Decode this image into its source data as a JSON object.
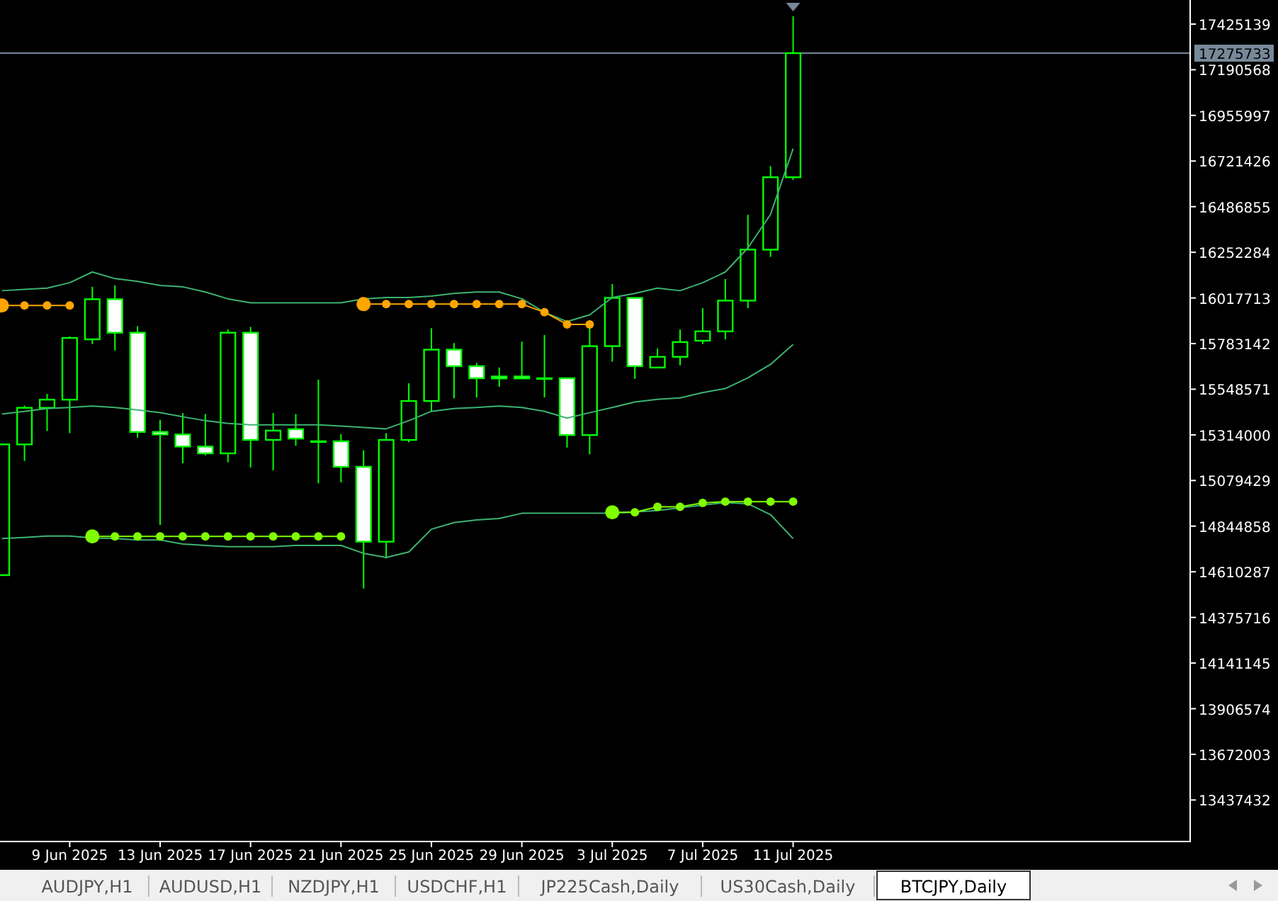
{
  "chart_data": {
    "type": "candlestick",
    "title": "BTCJPY,Daily",
    "annotations": [
      "AUDJPY,H1",
      "AUDUSD,H1",
      "NZDJPY,H1",
      "USDCHF,H1",
      "JP225Cash,Daily",
      "US30Cash,Daily"
    ],
    "color": "#00ff00",
    "x": [
      "2025-06-06",
      "2025-06-07",
      "2025-06-08",
      "2025-06-09",
      "2025-06-10",
      "2025-06-11",
      "2025-06-12",
      "2025-06-13",
      "2025-06-14",
      "2025-06-15",
      "2025-06-16",
      "2025-06-17",
      "2025-06-18",
      "2025-06-19",
      "2025-06-20",
      "2025-06-21",
      "2025-06-22",
      "2025-06-23",
      "2025-06-24",
      "2025-06-25",
      "2025-06-26",
      "2025-06-27",
      "2025-06-28",
      "2025-06-29",
      "2025-06-30",
      "2025-07-01",
      "2025-07-02",
      "2025-07-03",
      "2025-07-04",
      "2025-07-05",
      "2025-07-06",
      "2025-07-07",
      "2025-07-08",
      "2025-07-09",
      "2025-07-10",
      "2025-07-11"
    ],
    "ohlc": [
      [
        14593000,
        15265000,
        14593000,
        15265000
      ],
      [
        15265000,
        15464000,
        15180000,
        15453000
      ],
      [
        15453000,
        15524000,
        15334000,
        15495000
      ],
      [
        15495000,
        15820000,
        15323000,
        15812000
      ],
      [
        15805000,
        16075000,
        15781000,
        16011000
      ],
      [
        16011000,
        16082000,
        15747000,
        15839000
      ],
      [
        15839000,
        15873000,
        15299000,
        15329000
      ],
      [
        15329000,
        15391000,
        14851000,
        15316000
      ],
      [
        15316000,
        15426000,
        15168000,
        15254000
      ],
      [
        15254000,
        15421000,
        15208000,
        15219000
      ],
      [
        15219000,
        15855000,
        15173000,
        15839000
      ],
      [
        15839000,
        15869000,
        15146000,
        15288000
      ],
      [
        15288000,
        15426000,
        15132000,
        15336000
      ],
      [
        15343000,
        15421000,
        15258000,
        15295000
      ],
      [
        15281000,
        15598000,
        15065000,
        15281000
      ],
      [
        15281000,
        15318000,
        15070000,
        15150000
      ],
      [
        15150000,
        15235000,
        14524000,
        14765000
      ],
      [
        14765000,
        15323000,
        14679000,
        15288000
      ],
      [
        15288000,
        15579000,
        15276000,
        15488000
      ],
      [
        15488000,
        15862000,
        15437000,
        15752000
      ],
      [
        15752000,
        15786000,
        15502000,
        15667000
      ],
      [
        15667000,
        15683000,
        15506000,
        15605000
      ],
      [
        15614000,
        15660000,
        15561000,
        15604000
      ],
      [
        15614000,
        15793000,
        15604000,
        15604000
      ],
      [
        15605000,
        15827000,
        15506000,
        15605000
      ],
      [
        15605000,
        15605000,
        15249000,
        15313000
      ],
      [
        15313000,
        15862000,
        15214000,
        15770000
      ],
      [
        15770000,
        16089000,
        15690000,
        16018000
      ],
      [
        16018000,
        16018000,
        15602000,
        15667000
      ],
      [
        15660000,
        15758000,
        15660000,
        15715000
      ],
      [
        15715000,
        15855000,
        15671000,
        15791000
      ],
      [
        15798000,
        15965000,
        15781000,
        15846000
      ],
      [
        15846000,
        16115000,
        15805000,
        16004000
      ],
      [
        16004000,
        16445000,
        15965000,
        16266000
      ],
      [
        16266000,
        16695000,
        16229000,
        16638000
      ],
      [
        16638000,
        17466000,
        16624000,
        17275733
      ]
    ],
    "series": [
      {
        "type": "line",
        "color": "#3cb371",
        "marker": "none",
        "values": [
          16055000,
          16062000,
          16068000,
          16096000,
          16151000,
          16117000,
          16103000,
          16082000,
          16075000,
          16048000,
          16013000,
          15993000,
          15993000,
          15993000,
          15993000,
          15993000,
          16013000,
          16020000,
          16020000,
          16027000,
          16041000,
          16048000,
          16048000,
          16013000,
          15944000,
          15896000,
          15931000,
          16020000,
          16041000,
          16068000,
          16055000,
          16096000,
          16151000,
          16275000,
          16447000,
          16785000
        ]
      },
      {
        "type": "line",
        "color": "#3cb371",
        "marker": "none",
        "values": [
          15421000,
          15435000,
          15449000,
          15455000,
          15462000,
          15455000,
          15442000,
          15428000,
          15407000,
          15387000,
          15373000,
          15366000,
          15366000,
          15366000,
          15366000,
          15359000,
          15352000,
          15345000,
          15387000,
          15435000,
          15449000,
          15455000,
          15462000,
          15455000,
          15435000,
          15400000,
          15428000,
          15455000,
          15483000,
          15497000,
          15504000,
          15531000,
          15552000,
          15607000,
          15676000,
          15779000
        ]
      },
      {
        "type": "line",
        "color": "#3cb371",
        "marker": "none",
        "values": [
          14781000,
          14787000,
          14794000,
          14794000,
          14784000,
          14781000,
          14774000,
          14774000,
          14753000,
          14746000,
          14739000,
          14739000,
          14739000,
          14746000,
          14746000,
          14746000,
          14705000,
          14684000,
          14712000,
          14829000,
          14863000,
          14877000,
          14884000,
          14911000,
          14911000,
          14911000,
          14911000,
          14911000,
          14918000,
          14925000,
          14939000,
          14953000,
          14966000,
          14960000,
          14904000,
          14781000
        ]
      },
      {
        "type": "line",
        "color": "#ffa500",
        "marker": "circle",
        "values": [
          15979000,
          15979000,
          15979000,
          15979000,
          null,
          null,
          null,
          null,
          null,
          null,
          null,
          null,
          null,
          null,
          null,
          null,
          15986000,
          15986000,
          15986000,
          15986000,
          15986000,
          15986000,
          15986000,
          15986000,
          15944000,
          15882000,
          15882000,
          null,
          null,
          null,
          null,
          null,
          null,
          null,
          null,
          null
        ]
      },
      {
        "type": "line",
        "color": "#7fff00",
        "marker": "circle",
        "values": [
          null,
          null,
          null,
          null,
          14792000,
          14792000,
          14792000,
          14792000,
          14792000,
          14792000,
          14792000,
          14792000,
          14792000,
          14792000,
          14792000,
          14792000,
          null,
          null,
          null,
          null,
          null,
          null,
          null,
          null,
          null,
          null,
          null,
          14916000,
          14916000,
          14944000,
          14944000,
          14964000,
          14971000,
          14971000,
          14971000,
          14971000
        ]
      }
    ],
    "xlim": [
      "2025-06-05T22:00",
      "2025-07-28T13:30"
    ],
    "xticks": [
      {
        "value": "2025-06-09",
        "label": "9 Jun 2025"
      },
      {
        "value": "2025-06-13",
        "label": "13 Jun 2025"
      },
      {
        "value": "2025-06-17",
        "label": "17 Jun 2025"
      },
      {
        "value": "2025-06-21",
        "label": "21 Jun 2025"
      },
      {
        "value": "2025-06-25",
        "label": "25 Jun 2025"
      },
      {
        "value": "2025-06-29",
        "label": "29 Jun 2025"
      },
      {
        "value": "2025-07-03",
        "label": "3 Jul 2025"
      },
      {
        "value": "2025-07-07",
        "label": "7 Jul 2025"
      },
      {
        "value": "2025-07-11",
        "label": "11 Jul 2025"
      }
    ],
    "ylim": [
      13224000,
      17549000
    ],
    "yticks": [
      17425139,
      17190568,
      16955997,
      16721426,
      16486855,
      16252284,
      16017713,
      15783142,
      15548571,
      15314000,
      15079429,
      14844858,
      14610287,
      14375716,
      14141145,
      13906574,
      13672003,
      13437432
    ],
    "ref_lines": [
      {
        "axis": "y",
        "value": 17275733,
        "label": "17275733",
        "color": "#778899"
      }
    ],
    "grid": false
  }
}
